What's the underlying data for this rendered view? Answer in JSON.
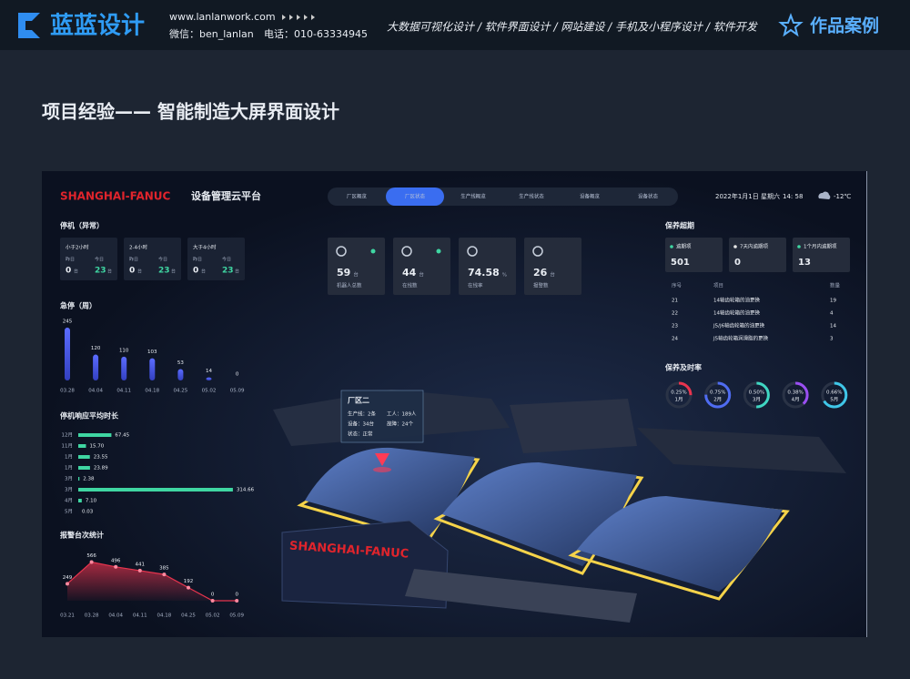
{
  "header": {
    "logo": "蓝蓝设计",
    "url": "www.lanlanwork.com",
    "wechat": "微信：ben_lanlan",
    "phone": "电话：010-63334945",
    "nav": "大数据可视化设计 / 软件界面设计 / 网站建设 / 手机及小程序设计 / 软件开发",
    "badge": "作品案例"
  },
  "page_title": "项目经验—— 智能制造大屏界面设计",
  "dashboard": {
    "brand": "SHANGHAI-FANUC",
    "platform": "设备管理云平台",
    "tabs": [
      {
        "label": "厂区概览"
      },
      {
        "label": "厂区状态",
        "active": true
      },
      {
        "label": "生产线概览"
      },
      {
        "label": "生产线状态"
      },
      {
        "label": "设备概览"
      },
      {
        "label": "设备状态"
      }
    ],
    "date": "2022年1月1日 星期六",
    "time": "14: 58",
    "weather": "-12℃",
    "downtime": {
      "title": "停机（异常）",
      "cards": [
        {
          "label": "小于2小时",
          "yesterday_label": "昨日",
          "yesterday": 0,
          "yesterday_unit": "台",
          "today_label": "今日",
          "today": 23,
          "today_unit": "台"
        },
        {
          "label": "2-4小时",
          "yesterday_label": "昨日",
          "yesterday": 0,
          "yesterday_unit": "台",
          "today_label": "今日",
          "today": 23,
          "today_unit": "台"
        },
        {
          "label": "大于4小时",
          "yesterday_label": "昨日",
          "yesterday": 0,
          "yesterday_unit": "台",
          "today_label": "今日",
          "today": 23,
          "today_unit": "台"
        }
      ]
    },
    "estop": {
      "type": "bar",
      "title": "急停（周）",
      "categories": [
        "03.28",
        "04.04",
        "04.11",
        "04.18",
        "04.25",
        "05.02",
        "05.09"
      ],
      "values": [
        245,
        120,
        110,
        103,
        53,
        14,
        0
      ],
      "color": "#4f5ff2"
    },
    "response": {
      "type": "hbar",
      "title": "停机响应平均时长",
      "categories": [
        "12月",
        "11月",
        "1月",
        "1月",
        "3月",
        "3月",
        "4月",
        "5月"
      ],
      "values": [
        67.45,
        15.7,
        23.55,
        23.89,
        2.38,
        314.66,
        7.1,
        0.03
      ],
      "value_labels": [
        "67.45",
        "15.70",
        "23.55",
        "23.89",
        "2.38",
        "314.66",
        "7.10",
        "0.03"
      ],
      "color": "#3fd6a2"
    },
    "alarms": {
      "type": "line",
      "title": "报警台次统计",
      "categories": [
        "03.21",
        "03.28",
        "04.04",
        "04.11",
        "04.18",
        "04.25",
        "05.02",
        "05.09"
      ],
      "values": [
        249,
        566,
        496,
        441,
        385,
        192,
        0,
        0
      ],
      "color": "#e8344e"
    },
    "stats": [
      {
        "value": 59,
        "unit": "台",
        "label": "机器人总数",
        "status": true
      },
      {
        "value": 44,
        "unit": "台",
        "label": "在线数",
        "status": true
      },
      {
        "value": 74.58,
        "unit": "%",
        "label": "在线率"
      },
      {
        "value": 26,
        "unit": "台",
        "label": "报警数"
      }
    ],
    "maintenance": {
      "title": "保养超期",
      "cards": [
        {
          "label": "逾期项",
          "value": 501,
          "color": "#3fd6a2"
        },
        {
          "label": "7天内逾期项",
          "value": 0,
          "color": "#e6e6e6"
        },
        {
          "label": "1个月内逾期项",
          "value": 13,
          "color": "#3fd6a2"
        }
      ],
      "table": {
        "header": [
          "序号",
          "项目",
          "数量"
        ],
        "rows": [
          [
            21,
            "14轴齿轮箱的油更换",
            19
          ],
          [
            22,
            "14轴齿轮箱的油更换",
            4
          ],
          [
            23,
            "J5/J6轴齿轮箱的油更换",
            14
          ],
          [
            24,
            "J5轴齿轮箱润滑脂的更换",
            3
          ]
        ]
      }
    },
    "timeliness": {
      "type": "ring",
      "title": "保养及时率",
      "categories": [
        "1月",
        "2月",
        "3月",
        "4月",
        "5月"
      ],
      "values": [
        0.25,
        0.75,
        0.5,
        0.38,
        0.66
      ],
      "value_labels": [
        "0.25%",
        "0.75%",
        "0.50%",
        "0.38%",
        "0.66%"
      ],
      "colors": [
        "#e8344e",
        "#4f6cf2",
        "#3fd6c2",
        "#9a4ff2",
        "#3fc6e8"
      ]
    },
    "popup": {
      "title": "厂区二",
      "rows": [
        "生产线：2条",
        "工人：189人",
        "设备：34台",
        "故障：24个",
        "状态：正常"
      ]
    },
    "factory_sign": "SHANGHAI-FANUC"
  }
}
